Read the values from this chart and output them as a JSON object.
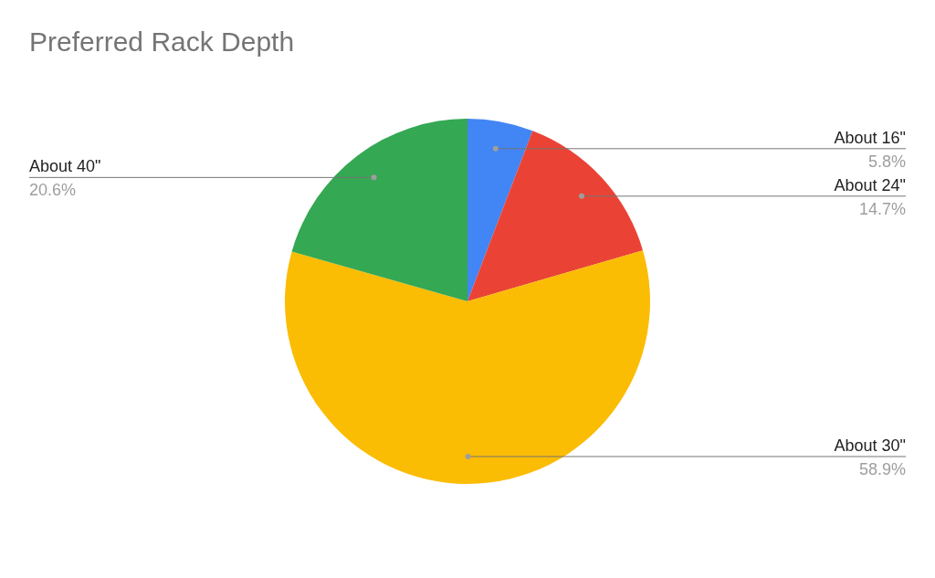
{
  "chart_data": {
    "type": "pie",
    "title": "Preferred Rack Depth",
    "categories": [
      "About 16\"",
      "About 24\"",
      "About 30\"",
      "About 40\""
    ],
    "values": [
      5.8,
      14.7,
      58.9,
      20.6
    ],
    "colors": [
      "#4285f4",
      "#ea4335",
      "#fbbc04",
      "#34a853"
    ],
    "value_labels": [
      "5.8%",
      "14.7%",
      "58.9%",
      "20.6%"
    ]
  }
}
